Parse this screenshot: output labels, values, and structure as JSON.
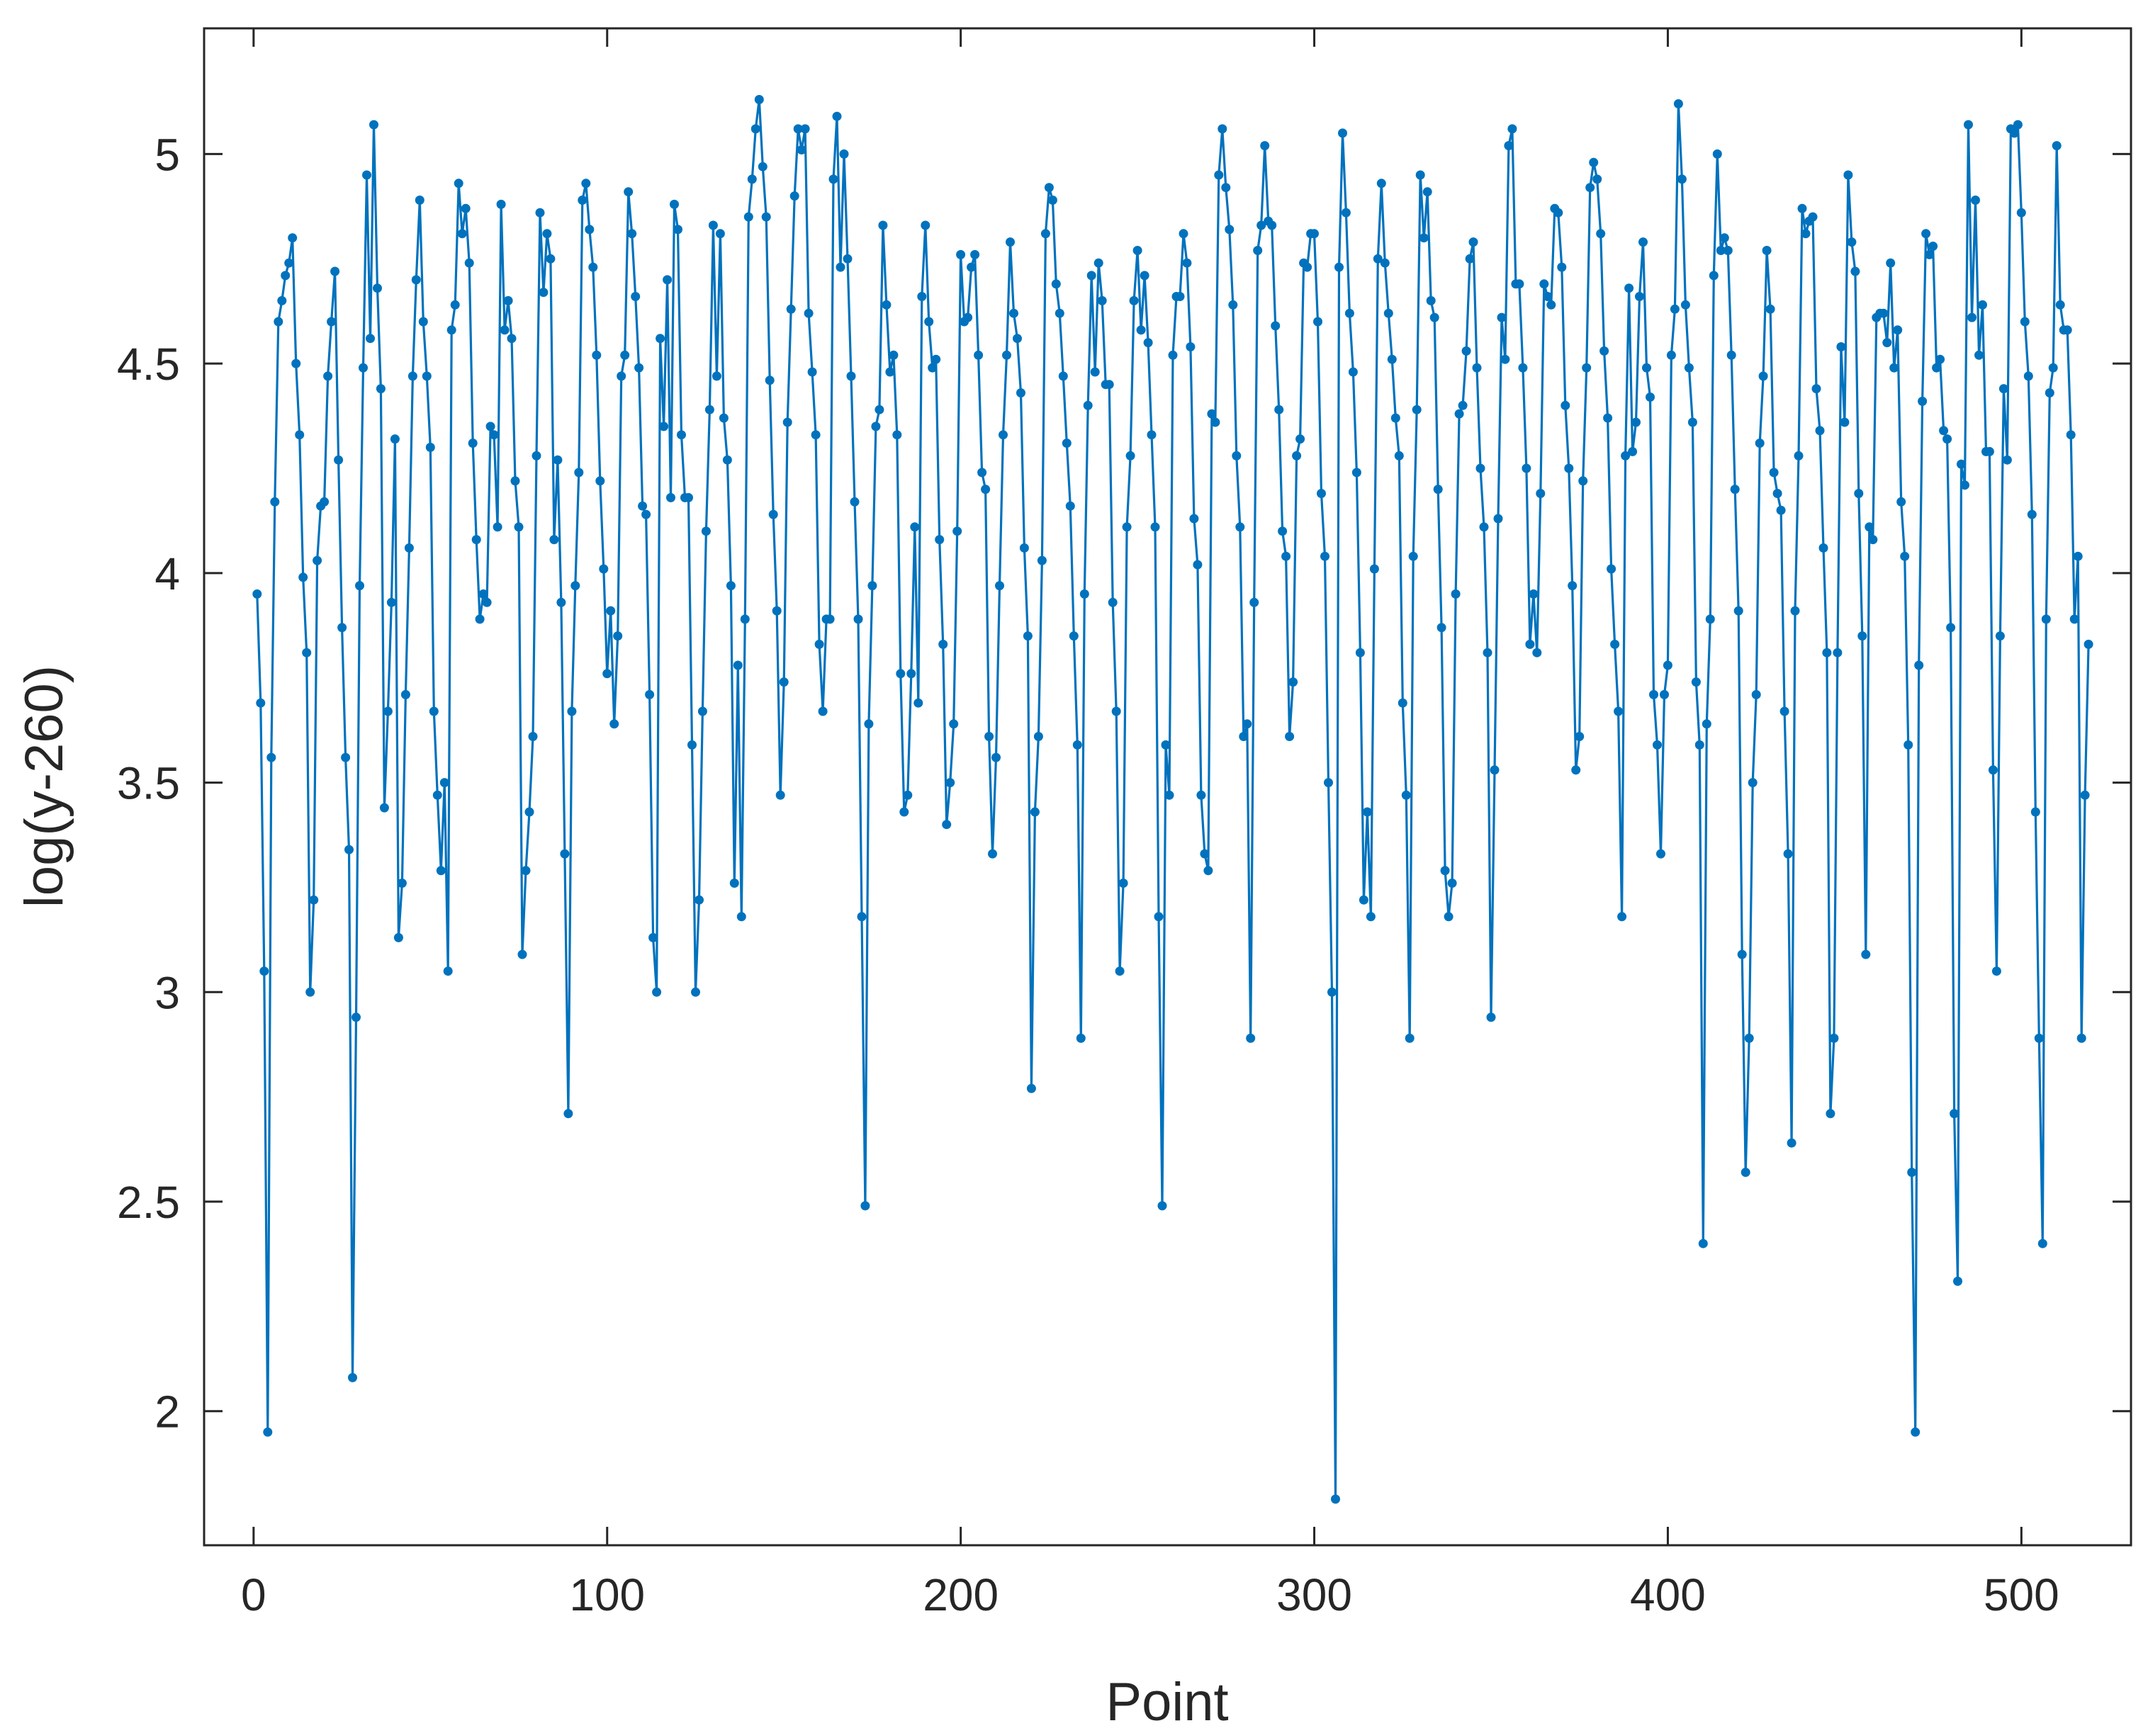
{
  "chart_data": {
    "type": "line",
    "title": "",
    "xlabel": "Point",
    "ylabel": "log(y-260)",
    "xlim": [
      -14,
      531
    ],
    "ylim": [
      1.68,
      5.3
    ],
    "xticks": [
      0,
      100,
      200,
      300,
      400,
      500
    ],
    "xtick_labels": [
      "0",
      "100",
      "200",
      "300",
      "400",
      "500"
    ],
    "yticks": [
      2,
      2.5,
      3,
      3.5,
      4,
      4.5,
      5
    ],
    "ytick_labels": [
      "2",
      "2.5",
      "3",
      "3.5",
      "4",
      "4.5",
      "5"
    ],
    "grid": false,
    "color": "#0072BD",
    "series": [
      {
        "marker": "dot",
        "x": [
          1,
          2,
          3,
          4,
          5,
          6,
          7,
          8,
          9,
          10,
          11,
          12,
          13,
          14,
          15,
          16,
          17,
          18,
          19,
          20,
          21,
          22,
          23,
          24,
          25,
          26,
          27,
          28,
          29,
          30,
          31,
          32,
          33,
          34,
          35,
          36,
          37,
          38,
          39,
          40,
          41,
          42,
          43,
          44,
          45,
          46,
          47,
          48,
          49,
          50,
          51,
          52,
          53,
          54,
          55,
          56,
          57,
          58,
          59,
          60,
          61,
          62,
          63,
          64,
          65,
          66,
          67,
          68,
          69,
          70,
          71,
          72,
          73,
          74,
          75,
          76,
          77,
          78,
          79,
          80,
          81,
          82,
          83,
          84,
          85,
          86,
          87,
          88,
          89,
          90,
          91,
          92,
          93,
          94,
          95,
          96,
          97,
          98,
          99,
          100,
          101,
          102,
          103,
          104,
          105,
          106,
          107,
          108,
          109,
          110,
          111,
          112,
          113,
          114,
          115,
          116,
          117,
          118,
          119,
          120,
          121,
          122,
          123,
          124,
          125,
          126,
          127,
          128,
          129,
          130,
          131,
          132,
          133,
          134,
          135,
          136,
          137,
          138,
          139,
          140,
          141,
          142,
          143,
          144,
          145,
          146,
          147,
          148,
          149,
          150,
          151,
          152,
          153,
          154,
          155,
          156,
          157,
          158,
          159,
          160,
          161,
          162,
          163,
          164,
          165,
          166,
          167,
          168,
          169,
          170,
          171,
          172,
          173,
          174,
          175,
          176,
          177,
          178,
          179,
          180,
          181,
          182,
          183,
          184,
          185,
          186,
          187,
          188,
          189,
          190,
          191,
          192,
          193,
          194,
          195,
          196,
          197,
          198,
          199,
          200,
          201,
          202,
          203,
          204,
          205,
          206,
          207,
          208,
          209,
          210,
          211,
          212,
          213,
          214,
          215,
          216,
          217,
          218,
          219,
          220,
          221,
          222,
          223,
          224,
          225,
          226,
          227,
          228,
          229,
          230,
          231,
          232,
          233,
          234,
          235,
          236,
          237,
          238,
          239,
          240,
          241,
          242,
          243,
          244,
          245,
          246,
          247,
          248,
          249,
          250,
          251,
          252,
          253,
          254,
          255,
          256,
          257,
          258,
          259,
          260,
          261,
          262,
          263,
          264,
          265,
          266,
          267,
          268,
          269,
          270,
          271,
          272,
          273,
          274,
          275,
          276,
          277,
          278,
          279,
          280,
          281,
          282,
          283,
          284,
          285,
          286,
          287,
          288,
          289,
          290,
          291,
          292,
          293,
          294,
          295,
          296,
          297,
          298,
          299,
          300,
          301,
          302,
          303,
          304,
          305,
          306,
          307,
          308,
          309,
          310,
          311,
          312,
          313,
          314,
          315,
          316,
          317,
          318,
          319,
          320,
          321,
          322,
          323,
          324,
          325,
          326,
          327,
          328,
          329,
          330,
          331,
          332,
          333,
          334,
          335,
          336,
          337,
          338,
          339,
          340,
          341,
          342,
          343,
          344,
          345,
          346,
          347,
          348,
          349,
          350,
          351,
          352,
          353,
          354,
          355,
          356,
          357,
          358,
          359,
          360,
          361,
          362,
          363,
          364,
          365,
          366,
          367,
          368,
          369,
          370,
          371,
          372,
          373,
          374,
          375,
          376,
          377,
          378,
          379,
          380,
          381,
          382,
          383,
          384,
          385,
          386,
          387,
          388,
          389,
          390,
          391,
          392,
          393,
          394,
          395,
          396,
          397,
          398,
          399,
          400,
          401,
          402,
          403,
          404,
          405,
          406,
          407,
          408,
          409,
          410,
          411,
          412,
          413,
          414,
          415,
          416,
          417,
          418,
          419,
          420,
          421,
          422,
          423,
          424,
          425,
          426,
          427,
          428,
          429,
          430,
          431,
          432,
          433,
          434,
          435,
          436,
          437,
          438,
          439,
          440,
          441,
          442,
          443,
          444,
          445,
          446,
          447,
          448,
          449,
          450,
          451,
          452,
          453,
          454,
          455,
          456,
          457,
          458,
          459,
          460,
          461,
          462,
          463,
          464,
          465,
          466,
          467,
          468,
          469,
          470,
          471,
          472,
          473,
          474,
          475,
          476,
          477,
          478,
          479,
          480,
          481,
          482,
          483,
          484,
          485,
          486,
          487,
          488,
          489,
          490,
          491,
          492,
          493,
          494,
          495,
          496,
          497,
          498,
          499,
          500,
          501,
          502,
          503,
          504,
          505,
          506,
          507,
          508,
          509,
          510,
          511,
          512,
          513,
          514,
          515,
          516,
          517,
          518,
          519
        ],
        "y": [
          3.95,
          3.69,
          3.05,
          1.95,
          3.56,
          4.17,
          4.6,
          4.65,
          4.71,
          4.74,
          4.8,
          4.5,
          4.33,
          3.99,
          3.81,
          3.0,
          3.22,
          4.03,
          4.16,
          4.17,
          4.47,
          4.6,
          4.72,
          4.27,
          3.87,
          3.56,
          3.34,
          2.08,
          2.94,
          3.97,
          4.49,
          4.95,
          4.56,
          5.07,
          4.68,
          4.44,
          3.44,
          3.67,
          3.93,
          4.32,
          3.13,
          3.26,
          3.71,
          4.06,
          4.47,
          4.7,
          4.89,
          4.6,
          4.47,
          4.3,
          3.67,
          3.47,
          3.29,
          3.5,
          3.05,
          4.58,
          4.64,
          4.93,
          4.81,
          4.87,
          4.74,
          4.31,
          4.08,
          3.89,
          3.95,
          3.93,
          4.35,
          4.33,
          4.11,
          4.88,
          4.58,
          4.65,
          4.56,
          4.22,
          4.11,
          3.09,
          3.29,
          3.43,
          3.61,
          4.28,
          4.86,
          4.67,
          4.81,
          4.75,
          4.08,
          4.27,
          3.93,
          3.33,
          2.71,
          3.67,
          3.97,
          4.24,
          4.89,
          4.93,
          4.82,
          4.73,
          4.52,
          4.22,
          4.01,
          3.76,
          3.91,
          3.64,
          3.85,
          4.47,
          4.52,
          4.91,
          4.81,
          4.66,
          4.49,
          4.16,
          4.14,
          3.71,
          3.13,
          3.0,
          4.56,
          4.35,
          4.7,
          4.18,
          4.88,
          4.82,
          4.33,
          4.18,
          4.18,
          3.59,
          3.0,
          3.22,
          3.67,
          4.1,
          4.39,
          4.83,
          4.47,
          4.81,
          4.37,
          4.27,
          3.97,
          3.26,
          3.78,
          3.18,
          3.89,
          4.85,
          4.94,
          5.06,
          5.13,
          4.97,
          4.85,
          4.46,
          4.14,
          3.91,
          3.47,
          3.74,
          4.36,
          4.63,
          4.9,
          5.06,
          5.01,
          5.06,
          4.62,
          4.48,
          4.33,
          3.83,
          3.67,
          3.89,
          3.89,
          4.94,
          5.09,
          4.73,
          5.0,
          4.75,
          4.47,
          4.17,
          3.89,
          3.18,
          2.49,
          3.64,
          3.97,
          4.35,
          4.39,
          4.83,
          4.64,
          4.48,
          4.52,
          4.33,
          3.76,
          3.43,
          3.47,
          3.76,
          4.11,
          3.69,
          4.66,
          4.83,
          4.6,
          4.49,
          4.51,
          4.08,
          3.83,
          3.4,
          3.5,
          3.64,
          4.1,
          4.76,
          4.6,
          4.61,
          4.73,
          4.76,
          4.52,
          4.24,
          4.2,
          3.61,
          3.33,
          3.56,
          3.97,
          4.33,
          4.52,
          4.79,
          4.62,
          4.56,
          4.43,
          4.06,
          3.85,
          2.77,
          3.43,
          3.61,
          4.03,
          4.81,
          4.92,
          4.89,
          4.69,
          4.62,
          4.47,
          4.31,
          4.16,
          3.85,
          3.59,
          2.89,
          3.95,
          4.4,
          4.71,
          4.48,
          4.74,
          4.65,
          4.45,
          4.45,
          3.93,
          3.67,
          3.05,
          3.26,
          4.11,
          4.28,
          4.65,
          4.77,
          4.58,
          4.71,
          4.55,
          4.33,
          4.11,
          3.18,
          2.49,
          3.59,
          3.47,
          4.52,
          4.66,
          4.66,
          4.81,
          4.74,
          4.54,
          4.13,
          4.02,
          3.47,
          3.33,
          3.29,
          4.38,
          4.36,
          4.95,
          5.06,
          4.92,
          4.82,
          4.64,
          4.28,
          4.11,
          3.61,
          3.64,
          2.89,
          3.93,
          4.77,
          4.83,
          5.02,
          4.84,
          4.83,
          4.59,
          4.39,
          4.1,
          4.04,
          3.61,
          3.74,
          4.28,
          4.32,
          4.74,
          4.73,
          4.81,
          4.81,
          4.6,
          4.19,
          4.04,
          3.5,
          3.0,
          1.79,
          4.73,
          5.05,
          4.86,
          4.62,
          4.48,
          4.24,
          3.81,
          3.22,
          3.43,
          3.18,
          4.01,
          4.75,
          4.93,
          4.74,
          4.62,
          4.51,
          4.37,
          4.28,
          3.69,
          3.47,
          2.89,
          4.04,
          4.39,
          4.95,
          4.8,
          4.91,
          4.65,
          4.61,
          4.2,
          3.87,
          3.29,
          3.18,
          3.26,
          3.95,
          4.38,
          4.4,
          4.53,
          4.75,
          4.79,
          4.49,
          4.25,
          4.11,
          3.81,
          2.94,
          3.53,
          4.13,
          4.61,
          4.51,
          5.02,
          5.06,
          4.69,
          4.69,
          4.49,
          4.25,
          3.83,
          3.95,
          3.81,
          4.19,
          4.69,
          4.66,
          4.64,
          4.87,
          4.86,
          4.73,
          4.4,
          4.25,
          3.97,
          3.53,
          3.61,
          4.22,
          4.49,
          4.92,
          4.98,
          4.94,
          4.81,
          4.53,
          4.37,
          4.01,
          3.83,
          3.67,
          3.18,
          4.28,
          4.68,
          4.29,
          4.36,
          4.66,
          4.79,
          4.49,
          4.42,
          3.71,
          3.59,
          3.33,
          3.71,
          3.78,
          4.52,
          4.63,
          5.12,
          4.94,
          4.64,
          4.49,
          4.36,
          3.74,
          3.59,
          2.4,
          3.64,
          3.89,
          4.71,
          5.0,
          4.77,
          4.8,
          4.77,
          4.52,
          4.2,
          3.91,
          3.09,
          2.57,
          2.89,
          3.5,
          3.71,
          4.31,
          4.47,
          4.77,
          4.63,
          4.24,
          4.19,
          4.15,
          3.67,
          3.33,
          2.64,
          3.91,
          4.28,
          4.87,
          4.81,
          4.84,
          4.85,
          4.44,
          4.34,
          4.06,
          3.81,
          2.71,
          2.89,
          3.81,
          4.54,
          4.36,
          4.95,
          4.79,
          4.72,
          4.19,
          3.85,
          3.09,
          4.11,
          4.08,
          4.61,
          4.62,
          4.62,
          4.55,
          4.74,
          4.49,
          4.58,
          4.17,
          4.04,
          3.59,
          2.57,
          1.95,
          3.78,
          4.41,
          4.81,
          4.76,
          4.78,
          4.49,
          4.51,
          4.34,
          4.32,
          3.87,
          2.71,
          2.31,
          4.26,
          4.21,
          5.07,
          4.61,
          4.89,
          4.52,
          4.64,
          4.29,
          4.29,
          3.53,
          3.05,
          3.85,
          4.44,
          4.27,
          5.06,
          5.05,
          5.07,
          4.86,
          4.6,
          4.47,
          4.14,
          3.43,
          2.89,
          2.4,
          3.89,
          4.43,
          4.49,
          5.02,
          4.64,
          4.58,
          4.58,
          4.33,
          3.89,
          4.04,
          2.89,
          3.47,
          3.83
        ]
      }
    ]
  }
}
